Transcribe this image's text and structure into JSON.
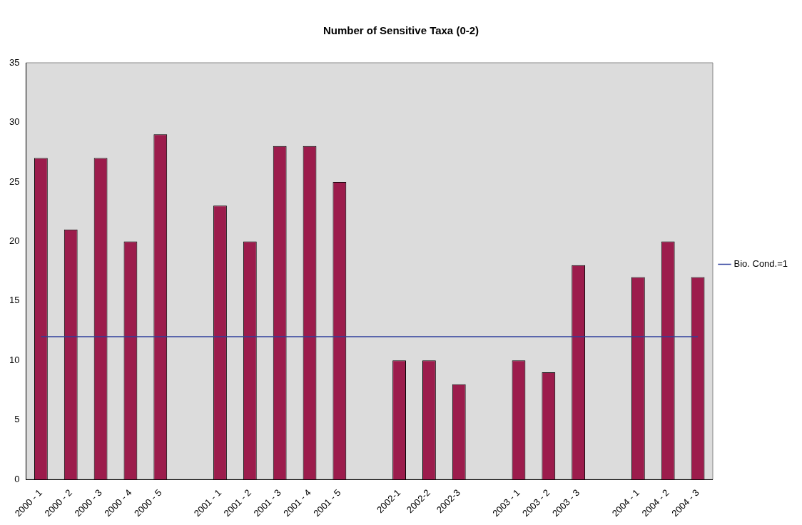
{
  "chart_data": {
    "type": "bar",
    "title": "Number of Sensitive Taxa (0-2)",
    "categories": [
      "2000 - 1",
      "2000 - 2",
      "2000 - 3",
      "2000 - 4",
      "2000 - 5",
      null,
      "2001 - 1",
      "2001 - 2",
      "2001 - 3",
      "2001 - 4",
      "2001 - 5",
      null,
      "2002-1",
      "2002-2",
      "2002-3",
      null,
      "2003 - 1",
      "2003 - 2",
      "2003 - 3",
      null,
      "2004 - 1",
      "2004 - 2",
      "2004 - 3"
    ],
    "series": [
      {
        "color": "#9c1c4c",
        "values": [
          27,
          21,
          27,
          20,
          29,
          null,
          23,
          20,
          28,
          28,
          25,
          null,
          10,
          10,
          8,
          null,
          10,
          9,
          18,
          null,
          17,
          20,
          17
        ]
      },
      {
        "type": "line",
        "name": "Bio. Cond.=1",
        "color": "#2f3f9c",
        "values": [
          12,
          12,
          12,
          12,
          12,
          12,
          12,
          12,
          12,
          12,
          12,
          12,
          12,
          12,
          12,
          12,
          12,
          12,
          12,
          12,
          12,
          12,
          12
        ]
      }
    ],
    "ylim": [
      0,
      35
    ],
    "yticks": [
      0,
      5,
      10,
      15,
      20,
      25,
      30,
      35
    ],
    "grid": false,
    "legend": "right",
    "marker": "none"
  }
}
